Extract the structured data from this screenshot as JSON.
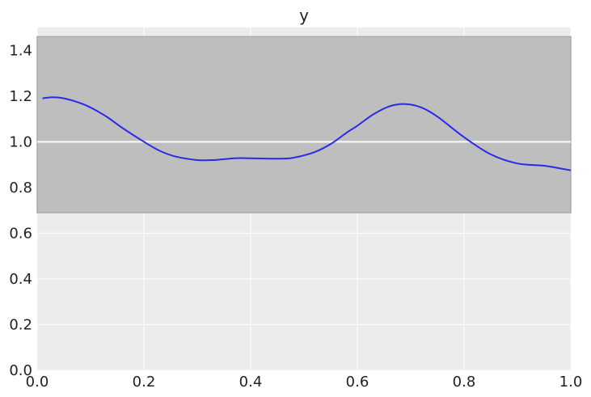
{
  "chart_data": {
    "type": "line",
    "title": "y",
    "xlabel": "",
    "ylabel": "",
    "xlim": [
      0.0,
      1.0
    ],
    "ylim": [
      0.0,
      1.5
    ],
    "x_ticks": [
      "0.0",
      "0.2",
      "0.4",
      "0.6",
      "0.8",
      "1.0"
    ],
    "y_ticks": [
      "0.0",
      "0.2",
      "0.4",
      "0.6",
      "0.8",
      "1.0",
      "1.2",
      "1.4"
    ],
    "grid": true,
    "reference_line": {
      "y": 1.0
    },
    "band": {
      "y_low": 0.69,
      "y_high": 1.46
    },
    "series": [
      {
        "x": [
          0.01,
          0.03,
          0.05,
          0.08,
          0.1,
          0.13,
          0.16,
          0.2,
          0.23,
          0.26,
          0.3,
          0.33,
          0.37,
          0.4,
          0.45,
          0.48,
          0.52,
          0.55,
          0.58,
          0.6,
          0.63,
          0.66,
          0.69,
          0.72,
          0.75,
          0.8,
          0.85,
          0.9,
          0.95,
          1.0
        ],
        "y": [
          1.19,
          1.195,
          1.19,
          1.17,
          1.15,
          1.11,
          1.06,
          1.0,
          0.96,
          0.935,
          0.92,
          0.92,
          0.928,
          0.928,
          0.926,
          0.93,
          0.955,
          0.99,
          1.04,
          1.07,
          1.12,
          1.155,
          1.165,
          1.15,
          1.11,
          1.02,
          0.945,
          0.905,
          0.895,
          0.875
        ]
      }
    ],
    "colors": {
      "background": "#ebebeb",
      "band": "#bebebe",
      "band_edge": "#aaaaaa",
      "line": "#2a2ae8",
      "reference_line": "#ffffff",
      "grid": "#ffffff"
    }
  }
}
